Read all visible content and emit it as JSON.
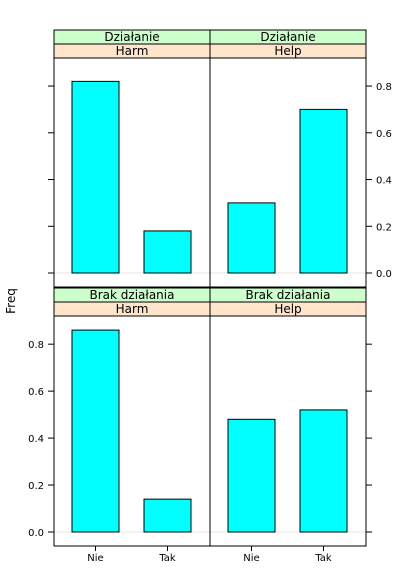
{
  "chart_data": {
    "type": "bar",
    "ylabel": "Freq",
    "categories": [
      "Nie",
      "Tak"
    ],
    "yticks": [
      "0.0",
      "0.2",
      "0.4",
      "0.6",
      "0.8"
    ],
    "ylim": [
      0,
      0.92
    ],
    "colors": {
      "bar": "#00ffff",
      "strip_outer": "#ccffcc",
      "strip_inner": "#ffe5cc"
    },
    "panels": [
      {
        "outer": "Działanie",
        "inner": "Harm",
        "values": [
          0.82,
          0.18
        ]
      },
      {
        "outer": "Działanie",
        "inner": "Help",
        "values": [
          0.3,
          0.7
        ]
      },
      {
        "outer": "Brak działania",
        "inner": "Harm",
        "values": [
          0.86,
          0.14
        ]
      },
      {
        "outer": "Brak działania",
        "inner": "Help",
        "values": [
          0.48,
          0.52
        ]
      }
    ]
  }
}
